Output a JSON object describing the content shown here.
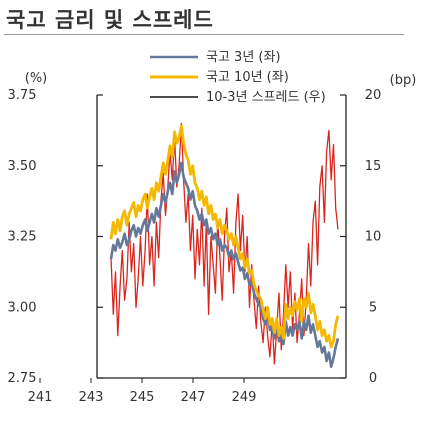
{
  "title": "국고 금리 및 스프레드",
  "chart_data": {
    "type": "line",
    "left_unit": "(%)",
    "right_unit": "(bp)",
    "x_ticks": [
      "241",
      "243",
      "245",
      "247",
      "249"
    ],
    "left_axis": {
      "range": [
        2.75,
        3.75
      ],
      "ticks": [
        "2.75",
        "3.00",
        "3.25",
        "3.50",
        "3.75"
      ]
    },
    "right_axis": {
      "range": [
        0,
        20
      ],
      "ticks": [
        "0",
        "5",
        "10",
        "15",
        "20"
      ]
    },
    "legend_placement": "top-center",
    "series": [
      {
        "name": "국고 3년 (좌)",
        "axis": "left",
        "color": "#66789a",
        "x": [
          0,
          0.1,
          0.2,
          0.3,
          0.4,
          0.5,
          0.6,
          0.7,
          0.8,
          0.9,
          1.0,
          1.1,
          1.2,
          1.3,
          1.4,
          1.5,
          1.6,
          1.7,
          1.8,
          1.9,
          2.0,
          2.1,
          2.2,
          2.3,
          2.4,
          2.5,
          2.6,
          2.7,
          2.8,
          2.9,
          3.0,
          3.1,
          3.2,
          3.3,
          3.4,
          3.5,
          3.6,
          3.7,
          3.8,
          3.9,
          4.0,
          4.1,
          4.2,
          4.3,
          4.4,
          4.5,
          4.6,
          4.7,
          4.8,
          4.9,
          5.0,
          5.1,
          5.2,
          5.3,
          5.4,
          5.5,
          5.6,
          5.7,
          5.8,
          5.9,
          6.0,
          6.1,
          6.2,
          6.3,
          6.4,
          6.5,
          6.6,
          6.7,
          6.8,
          6.9,
          7.0,
          7.1,
          7.2,
          7.3,
          7.4,
          7.5,
          7.6,
          7.7,
          7.8,
          7.9,
          8.0,
          8.1,
          8.2,
          8.3,
          8.4,
          8.5,
          8.6,
          8.7,
          8.8,
          8.9,
          9.0,
          9.1,
          9.2,
          9.3,
          9.4,
          9.5,
          9.6,
          9.7,
          9.8,
          9.9,
          10.0
        ],
        "values": [
          3.17,
          3.22,
          3.2,
          3.24,
          3.21,
          3.23,
          3.26,
          3.22,
          3.24,
          3.27,
          3.29,
          3.25,
          3.28,
          3.26,
          3.29,
          3.31,
          3.27,
          3.3,
          3.33,
          3.3,
          3.35,
          3.32,
          3.36,
          3.4,
          3.37,
          3.41,
          3.44,
          3.4,
          3.48,
          3.44,
          3.47,
          3.51,
          3.46,
          3.44,
          3.42,
          3.38,
          3.41,
          3.36,
          3.34,
          3.31,
          3.33,
          3.29,
          3.31,
          3.26,
          3.28,
          3.24,
          3.26,
          3.22,
          3.24,
          3.2,
          3.22,
          3.21,
          3.18,
          3.2,
          3.17,
          3.19,
          3.16,
          3.13,
          3.14,
          3.1,
          3.12,
          3.08,
          3.09,
          3.05,
          3.03,
          3.01,
          3.0,
          2.96,
          2.94,
          2.97,
          2.92,
          2.93,
          2.89,
          2.93,
          2.88,
          2.91,
          2.87,
          2.95,
          2.9,
          2.93,
          2.9,
          2.94,
          2.92,
          2.95,
          2.89,
          2.95,
          2.92,
          2.97,
          2.91,
          2.94,
          2.9,
          2.86,
          2.88,
          2.84,
          2.86,
          2.81,
          2.84,
          2.79,
          2.82,
          2.86,
          2.89
        ]
      },
      {
        "name": "국고 10년 (좌)",
        "axis": "left",
        "color": "#f5b800",
        "x": [
          0,
          0.1,
          0.2,
          0.3,
          0.4,
          0.5,
          0.6,
          0.7,
          0.8,
          0.9,
          1.0,
          1.1,
          1.2,
          1.3,
          1.4,
          1.5,
          1.6,
          1.7,
          1.8,
          1.9,
          2.0,
          2.1,
          2.2,
          2.3,
          2.4,
          2.5,
          2.6,
          2.7,
          2.8,
          2.9,
          3.0,
          3.1,
          3.2,
          3.3,
          3.4,
          3.5,
          3.6,
          3.7,
          3.8,
          3.9,
          4.0,
          4.1,
          4.2,
          4.3,
          4.4,
          4.5,
          4.6,
          4.7,
          4.8,
          4.9,
          5.0,
          5.1,
          5.2,
          5.3,
          5.4,
          5.5,
          5.6,
          5.7,
          5.8,
          5.9,
          6.0,
          6.1,
          6.2,
          6.3,
          6.4,
          6.5,
          6.6,
          6.7,
          6.8,
          6.9,
          7.0,
          7.1,
          7.2,
          7.3,
          7.4,
          7.5,
          7.6,
          7.7,
          7.8,
          7.9,
          8.0,
          8.1,
          8.2,
          8.3,
          8.4,
          8.5,
          8.6,
          8.7,
          8.8,
          8.9,
          9.0,
          9.1,
          9.2,
          9.3,
          9.4,
          9.5,
          9.6,
          9.7,
          9.8,
          9.9,
          10.0
        ],
        "values": [
          3.24,
          3.3,
          3.26,
          3.31,
          3.27,
          3.32,
          3.34,
          3.29,
          3.33,
          3.35,
          3.37,
          3.32,
          3.36,
          3.34,
          3.38,
          3.4,
          3.35,
          3.39,
          3.42,
          3.38,
          3.44,
          3.41,
          3.46,
          3.51,
          3.47,
          3.52,
          3.57,
          3.53,
          3.62,
          3.58,
          3.6,
          3.64,
          3.58,
          3.54,
          3.52,
          3.47,
          3.5,
          3.44,
          3.42,
          3.38,
          3.41,
          3.36,
          3.39,
          3.33,
          3.36,
          3.31,
          3.33,
          3.28,
          3.31,
          3.26,
          3.29,
          3.27,
          3.24,
          3.26,
          3.22,
          3.25,
          3.21,
          3.17,
          3.19,
          3.14,
          3.17,
          3.12,
          3.13,
          3.08,
          3.06,
          3.04,
          3.03,
          2.99,
          2.96,
          3.0,
          2.94,
          2.96,
          2.91,
          2.96,
          2.9,
          2.93,
          2.89,
          3.01,
          2.96,
          3.0,
          2.97,
          3.02,
          2.99,
          3.03,
          2.95,
          3.03,
          3.0,
          3.05,
          2.98,
          3.01,
          2.97,
          2.92,
          2.95,
          2.9,
          2.92,
          2.88,
          2.9,
          2.86,
          2.88,
          2.94,
          2.97
        ]
      },
      {
        "name": "10-3년 스프레드 (우)",
        "axis": "right",
        "color": "#d8261f",
        "x": [
          0,
          0.1,
          0.2,
          0.3,
          0.4,
          0.5,
          0.6,
          0.7,
          0.8,
          0.9,
          1.0,
          1.1,
          1.2,
          1.3,
          1.4,
          1.5,
          1.6,
          1.7,
          1.8,
          1.9,
          2.0,
          2.1,
          2.2,
          2.3,
          2.4,
          2.5,
          2.6,
          2.7,
          2.8,
          2.9,
          3.0,
          3.1,
          3.2,
          3.3,
          3.4,
          3.5,
          3.6,
          3.7,
          3.8,
          3.9,
          4.0,
          4.1,
          4.2,
          4.3,
          4.4,
          4.5,
          4.6,
          4.7,
          4.8,
          4.9,
          5.0,
          5.1,
          5.2,
          5.3,
          5.4,
          5.5,
          5.6,
          5.7,
          5.8,
          5.9,
          6.0,
          6.1,
          6.2,
          6.3,
          6.4,
          6.5,
          6.6,
          6.7,
          6.8,
          6.9,
          7.0,
          7.1,
          7.2,
          7.3,
          7.4,
          7.5,
          7.6,
          7.7,
          7.8,
          7.9,
          8.0,
          8.1,
          8.2,
          8.3,
          8.4,
          8.5,
          8.6,
          8.7,
          8.8,
          8.9,
          9.0,
          9.1,
          9.2,
          9.3,
          9.4,
          9.5,
          9.6,
          9.7,
          9.8,
          9.9,
          10.0
        ],
        "values": [
          8.5,
          4.5,
          7.5,
          3.0,
          6.5,
          9.0,
          5.5,
          7.0,
          11.0,
          7.5,
          9.5,
          5.0,
          7.0,
          10.0,
          6.5,
          9.0,
          13.0,
          8.0,
          10.0,
          6.5,
          11.0,
          8.5,
          12.5,
          14.5,
          11.5,
          13.5,
          16.0,
          14.0,
          17.0,
          13.5,
          15.0,
          18.0,
          14.0,
          11.0,
          13.0,
          9.0,
          11.5,
          7.0,
          10.5,
          8.0,
          12.0,
          6.5,
          11.0,
          4.5,
          10.0,
          8.0,
          6.0,
          11.0,
          8.5,
          5.5,
          10.0,
          12.0,
          7.5,
          9.0,
          6.0,
          11.0,
          13.0,
          9.0,
          11.5,
          7.5,
          10.0,
          5.0,
          8.0,
          5.5,
          3.5,
          6.5,
          4.0,
          2.5,
          5.0,
          3.0,
          1.5,
          4.0,
          1.0,
          3.5,
          6.0,
          2.0,
          4.5,
          8.0,
          5.0,
          7.5,
          3.5,
          6.0,
          2.5,
          4.5,
          7.0,
          3.0,
          5.5,
          9.5,
          6.5,
          11.0,
          12.5,
          8.0,
          13.5,
          15.0,
          11.0,
          16.0,
          17.5,
          14.0,
          16.5,
          12.0,
          10.5
        ]
      }
    ]
  }
}
